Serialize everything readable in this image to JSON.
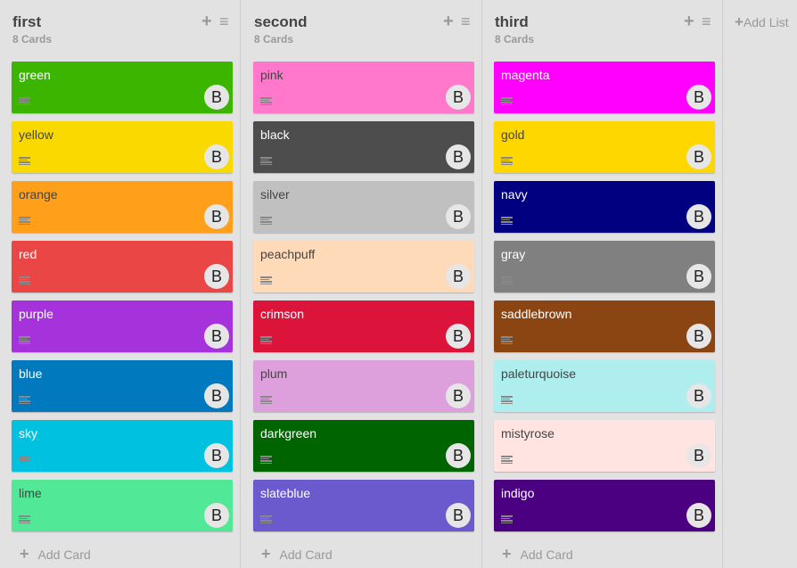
{
  "board": {
    "add_list_label": "Add List",
    "add_card_label": "Add Card",
    "avatar_initial": "B"
  },
  "lists": [
    {
      "title": "first",
      "count": "8 Cards",
      "cards": [
        {
          "title": "green",
          "color": "#3cb500",
          "text": "#ffffff"
        },
        {
          "title": "yellow",
          "color": "#fad900",
          "text": "#444444"
        },
        {
          "title": "orange",
          "color": "#ff9f1a",
          "text": "#444444"
        },
        {
          "title": "red",
          "color": "#eb4646",
          "text": "#ffffff"
        },
        {
          "title": "purple",
          "color": "#a632db",
          "text": "#ffffff"
        },
        {
          "title": "blue",
          "color": "#0079bf",
          "text": "#ffffff"
        },
        {
          "title": "sky",
          "color": "#00c2e0",
          "text": "#ffffff"
        },
        {
          "title": "lime",
          "color": "#51e898",
          "text": "#444444"
        }
      ]
    },
    {
      "title": "second",
      "count": "8 Cards",
      "cards": [
        {
          "title": "pink",
          "color": "#ff78cb",
          "text": "#444444"
        },
        {
          "title": "black",
          "color": "#4d4d4d",
          "text": "#ffffff"
        },
        {
          "title": "silver",
          "color": "#c0c0c0",
          "text": "#444444"
        },
        {
          "title": "peachpuff",
          "color": "#ffdab9",
          "text": "#444444"
        },
        {
          "title": "crimson",
          "color": "#dc143c",
          "text": "#ffffff"
        },
        {
          "title": "plum",
          "color": "#dda0dd",
          "text": "#444444"
        },
        {
          "title": "darkgreen",
          "color": "#006400",
          "text": "#ffffff"
        },
        {
          "title": "slateblue",
          "color": "#6a5acd",
          "text": "#ffffff"
        }
      ]
    },
    {
      "title": "third",
      "count": "8 Cards",
      "cards": [
        {
          "title": "magenta",
          "color": "#ff00ff",
          "text": "#ffffff"
        },
        {
          "title": "gold",
          "color": "#ffd700",
          "text": "#444444"
        },
        {
          "title": "navy",
          "color": "#000080",
          "text": "#ffffff"
        },
        {
          "title": "gray",
          "color": "#808080",
          "text": "#ffffff"
        },
        {
          "title": "saddlebrown",
          "color": "#8b4513",
          "text": "#ffffff"
        },
        {
          "title": "paleturquoise",
          "color": "#afeeee",
          "text": "#444444"
        },
        {
          "title": "mistyrose",
          "color": "#ffe4e1",
          "text": "#444444"
        },
        {
          "title": "indigo",
          "color": "#4b0082",
          "text": "#ffffff"
        }
      ]
    }
  ]
}
